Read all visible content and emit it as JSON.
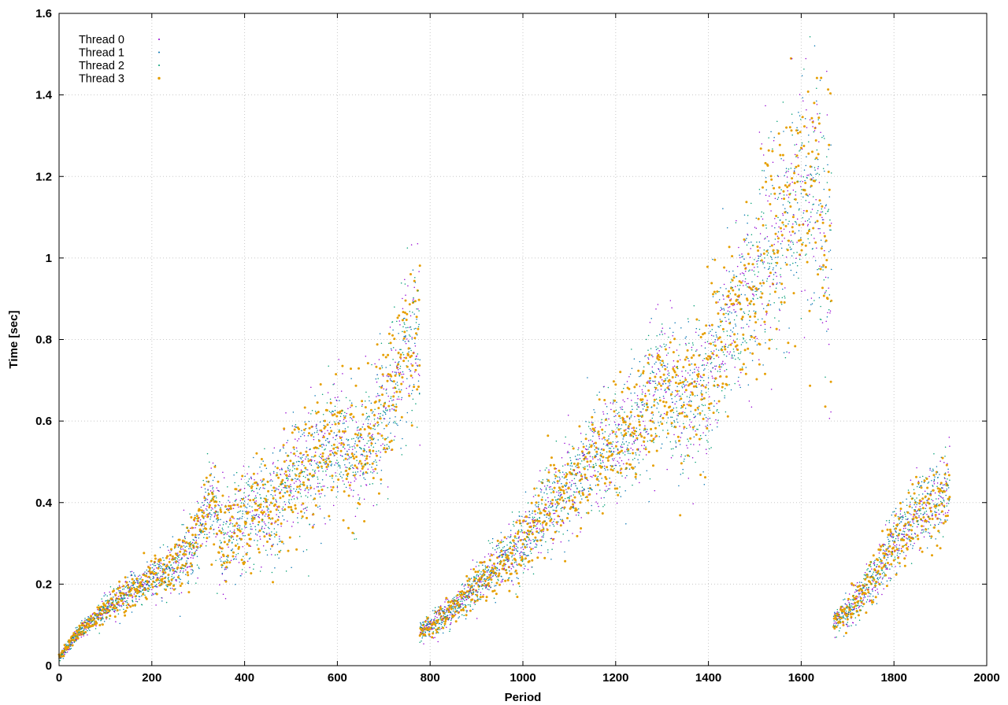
{
  "chart_data": {
    "type": "scatter",
    "title": "",
    "xlabel": "Period",
    "ylabel": "Time [sec]",
    "xlim": [
      0,
      2000
    ],
    "ylim": [
      0,
      1.6
    ],
    "xticks": [
      "0",
      "200",
      "400",
      "600",
      "800",
      "1000",
      "1200",
      "1400",
      "1600",
      "1800",
      "2000"
    ],
    "yticks": [
      "0",
      "0.2",
      "0.4",
      "0.6",
      "0.8",
      "1",
      "1.2",
      "1.4",
      "1.6"
    ],
    "grid": true,
    "legend_position": "top-left",
    "series": [
      {
        "name": "Thread 0",
        "color": "#9400d3"
      },
      {
        "name": "Thread 1",
        "color": "#0072b2"
      },
      {
        "name": "Thread 2",
        "color": "#009e73"
      },
      {
        "name": "Thread 3",
        "color": "#e69f00"
      }
    ],
    "trend_segments": [
      {
        "x_start": 0,
        "x_end": 778,
        "center": [
          [
            0,
            0.02
          ],
          [
            20,
            0.05
          ],
          [
            50,
            0.09
          ],
          [
            100,
            0.14
          ],
          [
            150,
            0.18
          ],
          [
            200,
            0.21
          ],
          [
            250,
            0.25
          ],
          [
            290,
            0.28
          ],
          [
            320,
            0.4
          ],
          [
            330,
            0.42
          ],
          [
            345,
            0.33
          ],
          [
            380,
            0.32
          ],
          [
            420,
            0.38
          ],
          [
            460,
            0.38
          ],
          [
            500,
            0.46
          ],
          [
            550,
            0.5
          ],
          [
            600,
            0.55
          ],
          [
            650,
            0.5
          ],
          [
            690,
            0.6
          ],
          [
            740,
            0.75
          ],
          [
            778,
            0.78
          ]
        ],
        "spread": [
          [
            0,
            0.005
          ],
          [
            100,
            0.015
          ],
          [
            250,
            0.03
          ],
          [
            330,
            0.06
          ],
          [
            500,
            0.07
          ],
          [
            700,
            0.08
          ],
          [
            778,
            0.1
          ]
        ]
      },
      {
        "x_start": 778,
        "x_end": 1665,
        "center": [
          [
            778,
            0.08
          ],
          [
            850,
            0.14
          ],
          [
            900,
            0.2
          ],
          [
            1000,
            0.3
          ],
          [
            1050,
            0.38
          ],
          [
            1100,
            0.43
          ],
          [
            1150,
            0.5
          ],
          [
            1200,
            0.55
          ],
          [
            1250,
            0.6
          ],
          [
            1300,
            0.7
          ],
          [
            1350,
            0.63
          ],
          [
            1400,
            0.72
          ],
          [
            1450,
            0.83
          ],
          [
            1500,
            0.95
          ],
          [
            1550,
            1.05
          ],
          [
            1600,
            1.15
          ],
          [
            1640,
            1.15
          ],
          [
            1665,
            1.0
          ]
        ],
        "spread": [
          [
            778,
            0.012
          ],
          [
            900,
            0.025
          ],
          [
            1050,
            0.05
          ],
          [
            1200,
            0.07
          ],
          [
            1350,
            0.09
          ],
          [
            1500,
            0.11
          ],
          [
            1665,
            0.17
          ]
        ]
      },
      {
        "x_start": 1670,
        "x_end": 1920,
        "center": [
          [
            1670,
            0.11
          ],
          [
            1700,
            0.13
          ],
          [
            1750,
            0.2
          ],
          [
            1800,
            0.3
          ],
          [
            1850,
            0.38
          ],
          [
            1900,
            0.41
          ],
          [
            1920,
            0.45
          ]
        ],
        "spread": [
          [
            1670,
            0.015
          ],
          [
            1760,
            0.03
          ],
          [
            1850,
            0.045
          ],
          [
            1920,
            0.05
          ]
        ]
      }
    ]
  }
}
